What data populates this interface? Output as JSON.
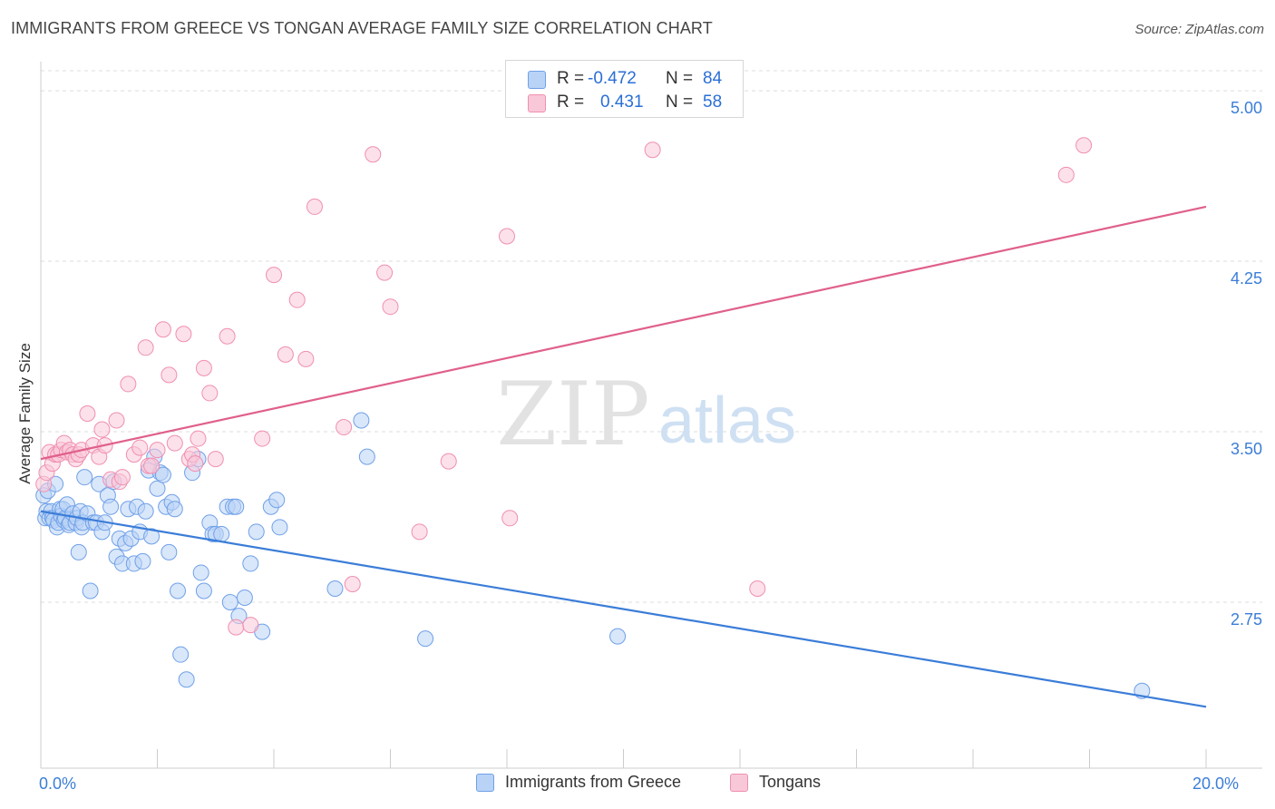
{
  "header": {
    "title": "IMMIGRANTS FROM GREECE VS TONGAN AVERAGE FAMILY SIZE CORRELATION CHART",
    "source": "Source: ZipAtlas.com"
  },
  "watermark": {
    "zip": "ZIP",
    "atlas": "atlas"
  },
  "stats": [
    {
      "r_label": "R =",
      "r_value": "-0.472",
      "n_label": "N =",
      "n_value": "84",
      "color": "#6fa0e8",
      "fill": "#b9d3f6"
    },
    {
      "r_label": "R =",
      "r_value": "0.431",
      "n_label": "N =",
      "n_value": "58",
      "color": "#f08fb0",
      "fill": "#f9c8d8"
    }
  ],
  "legend": [
    {
      "label": "Immigrants from Greece",
      "color": "#6fa0e8",
      "fill": "#b9d3f6"
    },
    {
      "label": "Tongans",
      "color": "#f08fb0",
      "fill": "#f9c8d8"
    }
  ],
  "chart_data": {
    "type": "scatter",
    "title": "IMMIGRANTS FROM GREECE VS TONGAN AVERAGE FAMILY SIZE CORRELATION CHART",
    "xlabel": "",
    "ylabel": "Average Family Size",
    "xlim": [
      0,
      20
    ],
    "ylim": [
      2.02,
      5.12
    ],
    "x_ticks": [
      0,
      20
    ],
    "x_tick_labels": [
      "0.0%",
      "20.0%"
    ],
    "y_ticks": [
      2.75,
      3.5,
      4.25,
      5.0
    ],
    "y_tick_labels": [
      "2.75",
      "3.50",
      "4.25",
      "5.00"
    ],
    "grid": true,
    "legend_position": "bottom-center",
    "series": [
      {
        "name": "Immigrants from Greece",
        "color": "#3b7dd8",
        "trend": {
          "x": [
            0,
            20
          ],
          "y": [
            3.15,
            2.29
          ]
        },
        "points": [
          [
            0.05,
            3.22
          ],
          [
            0.08,
            3.12
          ],
          [
            0.1,
            3.15
          ],
          [
            0.12,
            3.24
          ],
          [
            0.15,
            3.12
          ],
          [
            0.18,
            3.15
          ],
          [
            0.2,
            3.12
          ],
          [
            0.22,
            3.11
          ],
          [
            0.25,
            3.27
          ],
          [
            0.28,
            3.08
          ],
          [
            0.3,
            3.1
          ],
          [
            0.33,
            3.16
          ],
          [
            0.35,
            3.13
          ],
          [
            0.38,
            3.16
          ],
          [
            0.4,
            3.11
          ],
          [
            0.42,
            3.12
          ],
          [
            0.45,
            3.18
          ],
          [
            0.48,
            3.09
          ],
          [
            0.5,
            3.1
          ],
          [
            0.55,
            3.14
          ],
          [
            0.6,
            3.1
          ],
          [
            0.62,
            3.12
          ],
          [
            0.65,
            2.97
          ],
          [
            0.68,
            3.15
          ],
          [
            0.7,
            3.08
          ],
          [
            0.72,
            3.1
          ],
          [
            0.75,
            3.3
          ],
          [
            0.8,
            3.14
          ],
          [
            0.85,
            2.8
          ],
          [
            0.9,
            3.1
          ],
          [
            0.95,
            3.1
          ],
          [
            1.0,
            3.27
          ],
          [
            1.05,
            3.06
          ],
          [
            1.1,
            3.1
          ],
          [
            1.15,
            3.22
          ],
          [
            1.2,
            3.17
          ],
          [
            1.25,
            3.28
          ],
          [
            1.3,
            2.95
          ],
          [
            1.35,
            3.03
          ],
          [
            1.4,
            2.92
          ],
          [
            1.45,
            3.01
          ],
          [
            1.5,
            3.16
          ],
          [
            1.55,
            3.03
          ],
          [
            1.6,
            2.92
          ],
          [
            1.65,
            3.17
          ],
          [
            1.7,
            3.06
          ],
          [
            1.75,
            2.93
          ],
          [
            1.8,
            3.15
          ],
          [
            1.85,
            3.33
          ],
          [
            1.9,
            3.04
          ],
          [
            1.95,
            3.39
          ],
          [
            2.0,
            3.25
          ],
          [
            2.05,
            3.32
          ],
          [
            2.1,
            3.31
          ],
          [
            2.15,
            3.17
          ],
          [
            2.2,
            2.97
          ],
          [
            2.25,
            3.19
          ],
          [
            2.3,
            3.16
          ],
          [
            2.35,
            2.8
          ],
          [
            2.4,
            2.52
          ],
          [
            2.5,
            2.41
          ],
          [
            2.6,
            3.32
          ],
          [
            2.7,
            3.38
          ],
          [
            2.75,
            2.88
          ],
          [
            2.8,
            2.8
          ],
          [
            2.9,
            3.1
          ],
          [
            2.95,
            3.05
          ],
          [
            3.0,
            3.05
          ],
          [
            3.1,
            3.05
          ],
          [
            3.2,
            3.17
          ],
          [
            3.25,
            2.75
          ],
          [
            3.3,
            3.17
          ],
          [
            3.35,
            3.17
          ],
          [
            3.4,
            2.69
          ],
          [
            3.5,
            2.77
          ],
          [
            3.6,
            2.92
          ],
          [
            3.7,
            3.06
          ],
          [
            3.8,
            2.62
          ],
          [
            3.95,
            3.17
          ],
          [
            4.05,
            3.2
          ],
          [
            4.1,
            3.08
          ],
          [
            5.05,
            2.81
          ],
          [
            5.5,
            3.55
          ],
          [
            5.6,
            3.39
          ],
          [
            6.6,
            2.59
          ],
          [
            9.9,
            2.6
          ],
          [
            18.9,
            2.36
          ]
        ]
      },
      {
        "name": "Tongans",
        "color": "#e0608a",
        "trend": {
          "x": [
            0,
            20
          ],
          "y": [
            3.38,
            4.49
          ]
        },
        "points": [
          [
            0.05,
            3.27
          ],
          [
            0.1,
            3.32
          ],
          [
            0.15,
            3.41
          ],
          [
            0.2,
            3.36
          ],
          [
            0.25,
            3.4
          ],
          [
            0.3,
            3.4
          ],
          [
            0.35,
            3.42
          ],
          [
            0.4,
            3.45
          ],
          [
            0.45,
            3.41
          ],
          [
            0.5,
            3.42
          ],
          [
            0.55,
            3.4
          ],
          [
            0.6,
            3.38
          ],
          [
            0.65,
            3.4
          ],
          [
            0.7,
            3.42
          ],
          [
            0.8,
            3.58
          ],
          [
            0.9,
            3.44
          ],
          [
            1.0,
            3.39
          ],
          [
            1.05,
            3.51
          ],
          [
            1.1,
            3.44
          ],
          [
            1.2,
            3.29
          ],
          [
            1.3,
            3.55
          ],
          [
            1.35,
            3.28
          ],
          [
            1.4,
            3.3
          ],
          [
            1.5,
            3.71
          ],
          [
            1.6,
            3.4
          ],
          [
            1.7,
            3.43
          ],
          [
            1.8,
            3.87
          ],
          [
            1.85,
            3.35
          ],
          [
            1.9,
            3.35
          ],
          [
            2.0,
            3.42
          ],
          [
            2.1,
            3.95
          ],
          [
            2.2,
            3.75
          ],
          [
            2.3,
            3.45
          ],
          [
            2.45,
            3.93
          ],
          [
            2.55,
            3.38
          ],
          [
            2.6,
            3.4
          ],
          [
            2.65,
            3.36
          ],
          [
            2.7,
            3.47
          ],
          [
            2.8,
            3.78
          ],
          [
            2.9,
            3.67
          ],
          [
            3.0,
            3.38
          ],
          [
            3.2,
            3.92
          ],
          [
            3.35,
            2.64
          ],
          [
            3.6,
            2.65
          ],
          [
            3.8,
            3.47
          ],
          [
            4.0,
            4.19
          ],
          [
            4.2,
            3.84
          ],
          [
            4.4,
            4.08
          ],
          [
            4.55,
            3.82
          ],
          [
            4.7,
            4.49
          ],
          [
            5.2,
            3.52
          ],
          [
            5.35,
            2.83
          ],
          [
            5.7,
            4.72
          ],
          [
            5.9,
            4.2
          ],
          [
            6.0,
            4.05
          ],
          [
            6.5,
            3.06
          ],
          [
            7.0,
            3.37
          ],
          [
            8.0,
            4.36
          ],
          [
            8.05,
            3.12
          ],
          [
            10.5,
            4.74
          ],
          [
            12.3,
            2.81
          ],
          [
            17.6,
            4.63
          ],
          [
            17.9,
            4.76
          ]
        ]
      }
    ]
  }
}
